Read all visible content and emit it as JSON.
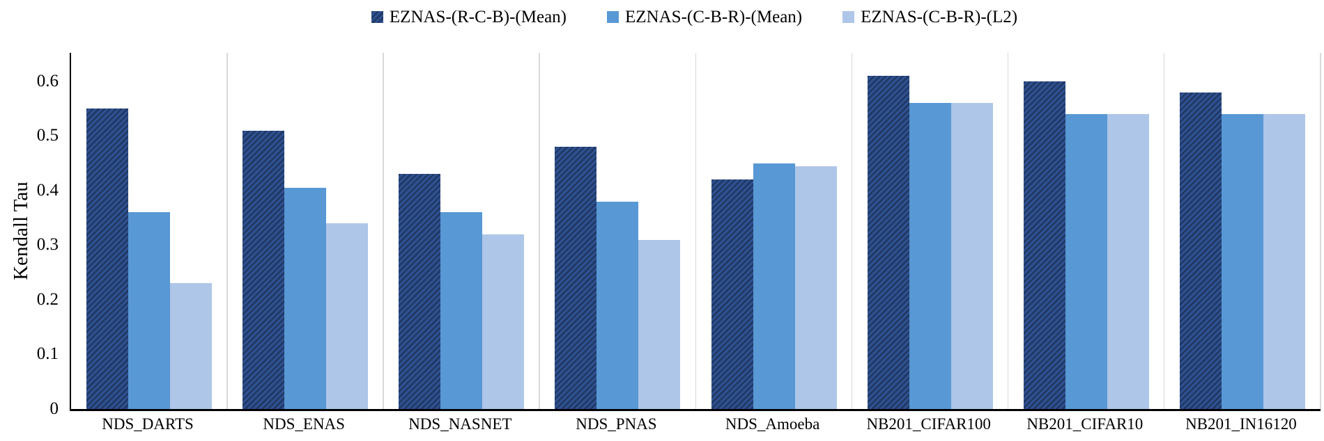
{
  "chart_data": {
    "type": "bar",
    "title": "",
    "ylabel": "Kendall Tau",
    "xlabel": "",
    "categories": [
      "NDS_DARTS",
      "NDS_ENAS",
      "NDS_NASNET",
      "NDS_PNAS",
      "NDS_Amoeba",
      "NB201_CIFAR100",
      "NB201_CIFAR10",
      "NB201_IN16120"
    ],
    "series": [
      {
        "name": "EZNAS-(R-C-B)-(Mean)",
        "color": "#2f5191",
        "hatch": true,
        "hatch_color": "#203864",
        "values": [
          0.55,
          0.51,
          0.43,
          0.48,
          0.42,
          0.61,
          0.6,
          0.58
        ]
      },
      {
        "name": "EZNAS-(C-B-R)-(Mean)",
        "color": "#5898d4",
        "hatch": false,
        "values": [
          0.36,
          0.405,
          0.36,
          0.38,
          0.45,
          0.56,
          0.54,
          0.54
        ]
      },
      {
        "name": "EZNAS-(C-B-R)-(L2)",
        "color": "#aec6e8",
        "hatch": false,
        "values": [
          0.23,
          0.34,
          0.32,
          0.31,
          0.445,
          0.56,
          0.54,
          0.54
        ]
      }
    ],
    "yticks": [
      "0",
      "0.1",
      "0.2",
      "0.3",
      "0.4",
      "0.5",
      "0.6"
    ],
    "ylim": [
      0,
      0.652
    ],
    "grid": "vertical category separators only",
    "legend_position": "top-center"
  },
  "colors": {
    "separator_line": "#d9d9d9",
    "axis_line": "#000000",
    "background": "#ffffff"
  }
}
